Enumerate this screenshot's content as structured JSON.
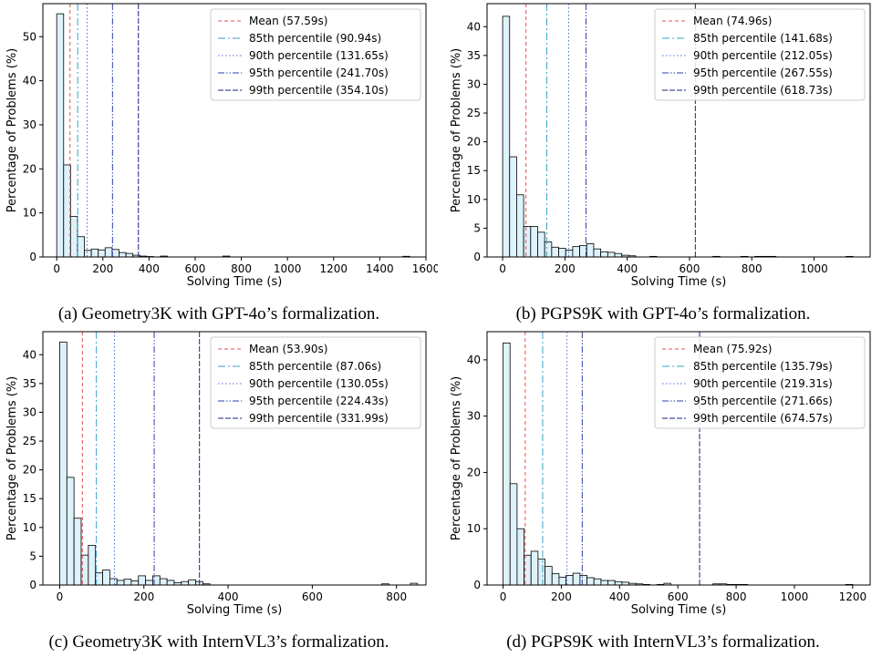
{
  "chart_data": [
    {
      "type": "bar",
      "caption": "(a) Geometry3K with GPT-4o’s formalization.",
      "xlabel": "Solving Time (s)",
      "ylabel": "Percentage of Problems (%)",
      "xlim": [
        -60,
        1600
      ],
      "ylim": [
        0,
        57.5
      ],
      "xticks": [
        0,
        200,
        400,
        600,
        800,
        1000,
        1200,
        1400,
        1600
      ],
      "yticks": [
        0,
        10,
        20,
        30,
        40,
        50
      ],
      "bin_width": 30,
      "bins_start": 0,
      "values": [
        55.2,
        20.9,
        9.2,
        4.6,
        1.5,
        1.8,
        1.6,
        2.1,
        1.7,
        1.0,
        0.8,
        0.4,
        0.2,
        0.1,
        0,
        0.2,
        0,
        0,
        0,
        0,
        0,
        0,
        0,
        0,
        0.2,
        0,
        0,
        0,
        0,
        0,
        0,
        0,
        0,
        0,
        0,
        0,
        0,
        0,
        0,
        0,
        0,
        0,
        0,
        0,
        0,
        0,
        0,
        0,
        0,
        0,
        0.15
      ],
      "legend": [
        {
          "label": "Mean (57.59s)",
          "value": 57.59,
          "color": "#e8504f",
          "style": "dashed"
        },
        {
          "label": "85th percentile (90.94s)",
          "value": 90.94,
          "color": "#3aa0c8",
          "style": "dashdot"
        },
        {
          "label": "90th percentile (131.65s)",
          "value": 131.65,
          "color": "#4d6fe0",
          "style": "dotted"
        },
        {
          "label": "95th percentile (241.70s)",
          "value": 241.7,
          "color": "#2e3fa8",
          "style": "dashdotdot"
        },
        {
          "label": "99th percentile (354.10s)",
          "value": 354.1,
          "color": "#1a237e",
          "style": "longdash"
        }
      ],
      "legend_position": "top-right"
    },
    {
      "type": "bar",
      "caption": "(b) PGPS9K with GPT-4o’s formalization.",
      "xlabel": "Solving Time (s)",
      "ylabel": "Percentage of Problems (%)",
      "xlim": [
        -50,
        1180
      ],
      "ylim": [
        0,
        44
      ],
      "xticks": [
        0,
        200,
        400,
        600,
        800,
        1000
      ],
      "yticks": [
        0,
        5,
        10,
        15,
        20,
        25,
        30,
        35,
        40
      ],
      "bin_width": 22.5,
      "bins_start": 0,
      "values": [
        41.8,
        17.4,
        10.8,
        5.3,
        5.3,
        4.3,
        2.6,
        1.7,
        1.5,
        1.2,
        1.8,
        2.0,
        2.3,
        1.4,
        0.9,
        0.8,
        0.6,
        0.3,
        0.2,
        0,
        0,
        0.1,
        0,
        0,
        0,
        0,
        0,
        0,
        0,
        0,
        0.1,
        0,
        0,
        0,
        0.1,
        0,
        0.1,
        0.1,
        0.1,
        0,
        0,
        0,
        0,
        0,
        0,
        0,
        0,
        0,
        0,
        0.1
      ],
      "legend": [
        {
          "label": "Mean (74.96s)",
          "value": 74.96,
          "color": "#e8504f",
          "style": "dashed"
        },
        {
          "label": "85th percentile (141.68s)",
          "value": 141.68,
          "color": "#3aa0c8",
          "style": "dashdot"
        },
        {
          "label": "90th percentile (212.05s)",
          "value": 212.05,
          "color": "#4d6fe0",
          "style": "dotted"
        },
        {
          "label": "95th percentile (267.55s)",
          "value": 267.55,
          "color": "#2e3fa8",
          "style": "dashdotdot"
        },
        {
          "label": "99th percentile (618.73s)",
          "value": 618.73,
          "color": "#1a237e",
          "style": "longdash"
        }
      ],
      "legend_position": "top-right"
    },
    {
      "type": "bar",
      "caption": "(c) Geometry3K with InternVL3’s formalization.",
      "xlabel": "Solving Time (s)",
      "ylabel": "Percentage of Problems (%)",
      "xlim": [
        -40,
        870
      ],
      "ylim": [
        0,
        44
      ],
      "xticks": [
        0,
        200,
        400,
        600,
        800
      ],
      "yticks": [
        0,
        5,
        10,
        15,
        20,
        25,
        30,
        35,
        40
      ],
      "bin_width": 17,
      "bins_start": 0,
      "values": [
        42.2,
        18.7,
        11.6,
        5.2,
        6.9,
        2.1,
        2.6,
        1.1,
        0.8,
        1.0,
        0.7,
        1.6,
        0.8,
        1.6,
        1.1,
        0.8,
        0.4,
        0.6,
        0.9,
        0.6,
        0.2,
        0,
        0,
        0,
        0,
        0,
        0,
        0,
        0,
        0,
        0,
        0,
        0,
        0,
        0,
        0,
        0,
        0,
        0,
        0,
        0,
        0,
        0,
        0,
        0,
        0.2,
        0,
        0,
        0,
        0.3
      ],
      "legend": [
        {
          "label": "Mean (53.90s)",
          "value": 53.9,
          "color": "#e8504f",
          "style": "dashed"
        },
        {
          "label": "85th percentile (87.06s)",
          "value": 87.06,
          "color": "#3aa0c8",
          "style": "dashdot"
        },
        {
          "label": "90th percentile (130.05s)",
          "value": 130.05,
          "color": "#4d6fe0",
          "style": "dotted"
        },
        {
          "label": "95th percentile (224.43s)",
          "value": 224.43,
          "color": "#2e3fa8",
          "style": "dashdotdot"
        },
        {
          "label": "99th percentile (331.99s)",
          "value": 331.99,
          "color": "#1a237e",
          "style": "longdash"
        }
      ],
      "legend_position": "top-right"
    },
    {
      "type": "bar",
      "caption": "(d) PGPS9K with InternVL3’s formalization.",
      "xlabel": "Solving Time (s)",
      "ylabel": "Percentage of Problems (%)",
      "xlim": [
        -55,
        1260
      ],
      "ylim": [
        0,
        45
      ],
      "xticks": [
        0,
        200,
        400,
        600,
        800,
        1000,
        1200
      ],
      "yticks": [
        0,
        10,
        20,
        30,
        40
      ],
      "bin_width": 24,
      "bins_start": 0,
      "values": [
        43.0,
        18.0,
        10.0,
        5.3,
        6.0,
        4.6,
        3.3,
        2.0,
        1.4,
        1.7,
        2.1,
        1.7,
        1.3,
        1.1,
        0.8,
        0.8,
        0.6,
        0.5,
        0.3,
        0.2,
        0.1,
        0,
        0.1,
        0.3,
        0,
        0,
        0,
        0,
        0,
        0,
        0.2,
        0.2,
        0.1,
        0.1,
        0.1,
        0,
        0,
        0,
        0,
        0,
        0,
        0,
        0,
        0,
        0,
        0,
        0,
        0,
        0,
        0.1
      ],
      "legend": [
        {
          "label": "Mean (75.92s)",
          "value": 75.92,
          "color": "#e8504f",
          "style": "dashed"
        },
        {
          "label": "85th percentile (135.79s)",
          "value": 135.79,
          "color": "#3aa0c8",
          "style": "dashdot"
        },
        {
          "label": "90th percentile (219.31s)",
          "value": 219.31,
          "color": "#4d6fe0",
          "style": "dotted"
        },
        {
          "label": "95th percentile (271.66s)",
          "value": 271.66,
          "color": "#2e3fa8",
          "style": "dashdotdot"
        },
        {
          "label": "99th percentile (674.57s)",
          "value": 674.57,
          "color": "#1a237e",
          "style": "longdash"
        }
      ],
      "legend_position": "top-right"
    }
  ]
}
